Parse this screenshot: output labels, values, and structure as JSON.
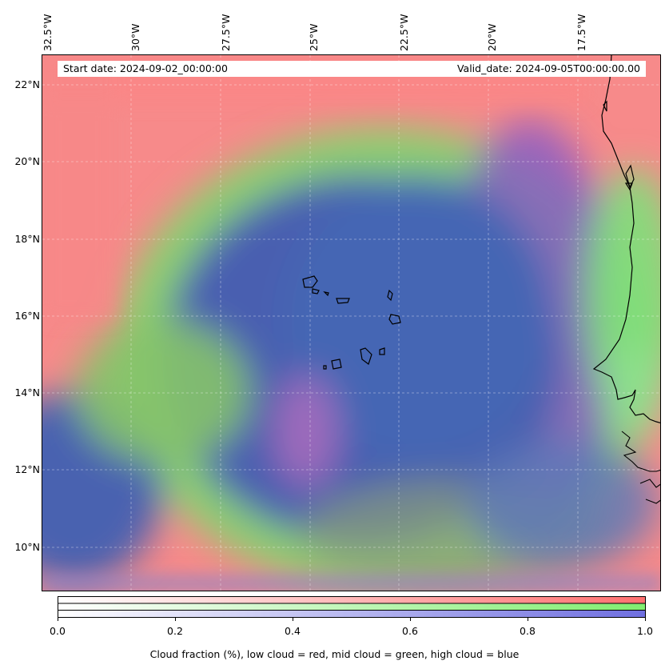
{
  "map": {
    "start_date": "Start date: 2024-09-02_00:00:00",
    "valid_date": "Valid_date: 2024-09-05T00:00:00.00",
    "lon_labels": [
      "32.5°W",
      "30°W",
      "27.5°W",
      "25°W",
      "22.5°W",
      "20°W",
      "17.5°W"
    ],
    "lat_labels": [
      "22°N",
      "20°N",
      "18°N",
      "16°N",
      "14°N",
      "12°N",
      "10°N"
    ],
    "lon_values": [
      -32.5,
      -30,
      -27.5,
      -25,
      -22.5,
      -20,
      -17.5
    ],
    "lat_values": [
      22,
      20,
      18,
      16,
      14,
      12,
      10
    ],
    "extent": {
      "lon_min": -32.6,
      "lon_max": -15.0,
      "lat_min": 8.9,
      "lat_max": 22.8
    },
    "gridlines": "dashed"
  },
  "colorbar": {
    "label": "Cloud fraction (%), low cloud = red, mid cloud = green, high cloud = blue",
    "ticks": [
      "0.0",
      "0.2",
      "0.4",
      "0.6",
      "0.8",
      "1.0"
    ],
    "tick_values": [
      0.0,
      0.2,
      0.4,
      0.6,
      0.8,
      1.0
    ],
    "colors": {
      "low": "#ff7070",
      "mid": "#80ee70",
      "high": "#6f6fe0"
    }
  }
}
